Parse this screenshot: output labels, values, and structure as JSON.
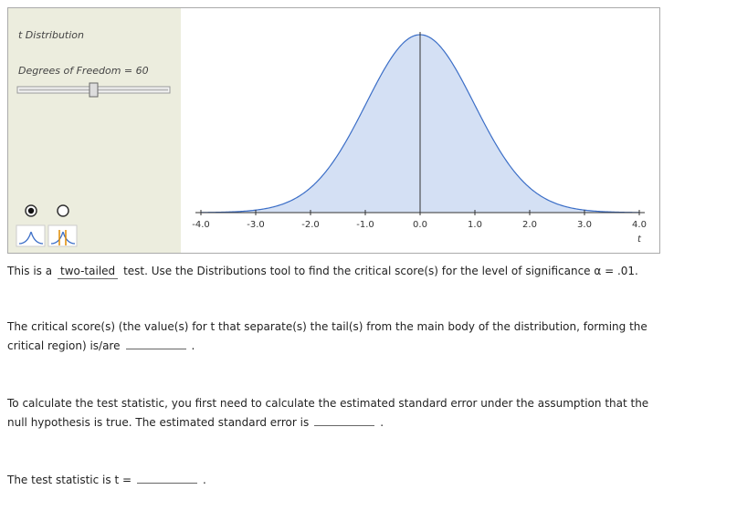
{
  "tool": {
    "title": "t Distribution",
    "degrees_of_freedom": {
      "value": 60,
      "label": "Degrees of Freedom = 60"
    },
    "xlim": [
      -4.0,
      4.0
    ],
    "xticks": [
      {
        "value": -4,
        "label": "-4.0"
      },
      {
        "value": -3,
        "label": "-3.0"
      },
      {
        "value": -2,
        "label": "-2.0"
      },
      {
        "value": -1,
        "label": "-1.0"
      },
      {
        "value": 0,
        "label": "0.0"
      },
      {
        "value": 1,
        "label": "1.0"
      },
      {
        "value": 2,
        "label": "2.0"
      },
      {
        "value": 3,
        "label": "3.0"
      },
      {
        "value": 4,
        "label": "4.0"
      }
    ],
    "xlabel": "t"
  },
  "questions": [
    {
      "before": "This is a",
      "answer": "two-tailed",
      "after": "test. Use the Distributions tool to find the critical score(s) for the level of significance α = .01."
    },
    {
      "before": "The critical score(s) (the value(s) for t that separate(s) the tail(s) from the main body of the distribution, forming the critical region) is/are",
      "answer": "",
      "after": "."
    },
    {
      "before": "To calculate the test statistic, you first need to calculate the estimated standard error under the assumption that the null hypothesis is true. The estimated standard error is",
      "answer": "",
      "after": "."
    },
    {
      "before": "The test statistic is t =",
      "answer": "",
      "after": "."
    }
  ]
}
